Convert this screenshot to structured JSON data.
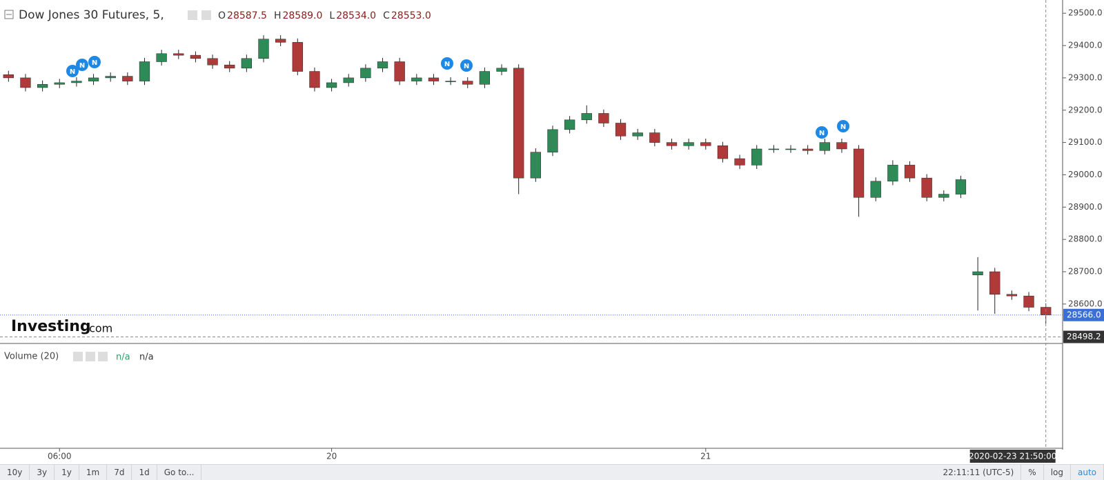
{
  "header": {
    "title": "Dow Jones 30 Futures, 5,",
    "ohlc": [
      {
        "key": "O",
        "value": "28587.5"
      },
      {
        "key": "H",
        "value": "28589.0"
      },
      {
        "key": "L",
        "value": "28534.0"
      },
      {
        "key": "C",
        "value": "28553.0"
      }
    ]
  },
  "logo": {
    "brand": "Investing",
    "suffix": ".com"
  },
  "volume_pane": {
    "title": "Volume (20)",
    "values": [
      "n/a",
      "n/a"
    ]
  },
  "toolbar": {
    "ranges": [
      "10y",
      "3y",
      "1y",
      "1m",
      "7d",
      "1d",
      "Go to..."
    ],
    "clock": "22:11:11 (UTC-5)",
    "options": [
      "%",
      "log",
      "auto"
    ]
  },
  "chart_data": {
    "type": "candlestick",
    "categories": [
      null,
      null,
      null,
      "06:00",
      null,
      null,
      null,
      null,
      null,
      null,
      null,
      null,
      null,
      null,
      null,
      null,
      null,
      null,
      null,
      "20",
      null,
      null,
      null,
      null,
      null,
      null,
      null,
      null,
      null,
      null,
      null,
      null,
      null,
      null,
      null,
      null,
      null,
      null,
      null,
      null,
      null,
      "21",
      null,
      null,
      null,
      null,
      null,
      null,
      null,
      null,
      null,
      null,
      null,
      null,
      null,
      null,
      null,
      null,
      null,
      null,
      null,
      null
    ],
    "open": [
      29310,
      29300,
      29270,
      29280,
      29285,
      29290,
      29300,
      29305,
      29290,
      29350,
      29375,
      29370,
      29360,
      29340,
      29330,
      29360,
      29420,
      29410,
      29320,
      29270,
      29285,
      29300,
      29330,
      29350,
      29290,
      29300,
      29290,
      29290,
      29280,
      29320,
      29330,
      28990,
      29070,
      29140,
      29170,
      29190,
      29160,
      29120,
      29130,
      29100,
      29090,
      29100,
      29090,
      29050,
      29030,
      29080,
      29080,
      29080,
      29075,
      29100,
      29080,
      28930,
      28980,
      29030,
      28990,
      28930,
      28940,
      28690,
      28700,
      28630,
      28625,
      28590
    ],
    "high": [
      29322,
      29312,
      29292,
      29297,
      29302,
      29312,
      29317,
      29317,
      29362,
      29387,
      29387,
      29382,
      29372,
      29352,
      29372,
      29432,
      29432,
      29422,
      29332,
      29297,
      29312,
      29342,
      29362,
      29362,
      29312,
      29312,
      29302,
      29302,
      29332,
      29342,
      29342,
      29082,
      29152,
      29182,
      29215,
      29202,
      29172,
      29142,
      29142,
      29112,
      29112,
      29112,
      29102,
      29062,
      29092,
      29092,
      29092,
      29092,
      29112,
      29112,
      29092,
      28992,
      29045,
      29042,
      29002,
      28952,
      28997,
      28745,
      28712,
      28642,
      28637,
      28602
    ],
    "low": [
      29288,
      29258,
      29258,
      29268,
      29273,
      29278,
      29288,
      29278,
      29278,
      29338,
      29358,
      29348,
      29328,
      29318,
      29318,
      29348,
      29398,
      29308,
      29258,
      29258,
      29273,
      29288,
      29318,
      29278,
      29278,
      29278,
      29278,
      29268,
      29268,
      29308,
      28940,
      28978,
      29058,
      29128,
      29158,
      29148,
      29108,
      29108,
      29088,
      29078,
      29078,
      29078,
      29038,
      29018,
      29018,
      29068,
      29068,
      29063,
      29063,
      29068,
      28870,
      28918,
      28968,
      28978,
      28918,
      28918,
      28928,
      28580,
      28570,
      28613,
      28578,
      28540
    ],
    "close": [
      29300,
      29270,
      29280,
      29285,
      29290,
      29300,
      29305,
      29290,
      29350,
      29375,
      29370,
      29360,
      29340,
      29330,
      29360,
      29420,
      29410,
      29320,
      29270,
      29285,
      29300,
      29330,
      29350,
      29290,
      29300,
      29290,
      29290,
      29280,
      29320,
      29330,
      28990,
      29070,
      29140,
      29170,
      29190,
      29160,
      29120,
      29130,
      29100,
      29090,
      29100,
      29090,
      29050,
      29030,
      29080,
      29080,
      29080,
      29075,
      29100,
      29080,
      28930,
      28980,
      29030,
      28990,
      28930,
      28940,
      28985,
      28700,
      28630,
      28625,
      28590,
      28566
    ],
    "up_color": "#2e8b57",
    "down_color": "#b03a3a",
    "ylim": [
      28478,
      29541
    ],
    "yticks": [
      {
        "value": 28600,
        "label": "28600.0"
      },
      {
        "value": 28700,
        "label": "28700.0"
      },
      {
        "value": 28800,
        "label": "28800.0"
      },
      {
        "value": 28900,
        "label": "28900.0"
      },
      {
        "value": 29000,
        "label": "29000.0"
      },
      {
        "value": 29100,
        "label": "29100.0"
      },
      {
        "value": 29200,
        "label": "29200.0"
      },
      {
        "value": 29300,
        "label": "29300.0"
      },
      {
        "value": 29400,
        "label": "29400.0"
      },
      {
        "value": 29500,
        "label": "29500.0"
      }
    ],
    "last_price": {
      "value": 28566,
      "label": "28566.0",
      "color": "#3b6fd6"
    },
    "crosshair": {
      "value": 28498.2,
      "label": "28498.2",
      "time": "2020-02-23 21:50:00"
    }
  }
}
